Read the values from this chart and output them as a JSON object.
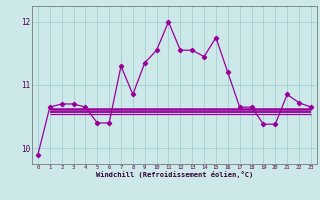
{
  "x": [
    0,
    1,
    2,
    3,
    4,
    5,
    6,
    7,
    8,
    9,
    10,
    11,
    12,
    13,
    14,
    15,
    16,
    17,
    18,
    19,
    20,
    21,
    22,
    23
  ],
  "y_main": [
    9.9,
    10.65,
    10.7,
    10.7,
    10.65,
    10.4,
    10.4,
    11.3,
    10.85,
    11.35,
    11.55,
    12.0,
    11.55,
    11.55,
    11.45,
    11.75,
    11.2,
    10.65,
    10.65,
    10.38,
    10.38,
    10.85,
    10.72,
    10.65
  ],
  "y_flat1": 10.62,
  "y_flat2": 10.58,
  "y_flat3": 10.54,
  "x_flat_start": 1,
  "x_flat_end": 23,
  "line_color": "#990099",
  "bg_color": "#cce8e8",
  "grid_color": "#99cccc",
  "ylim": [
    9.75,
    12.25
  ],
  "xlim": [
    -0.5,
    23.5
  ],
  "yticks": [
    10,
    11,
    12
  ],
  "xticks": [
    0,
    1,
    2,
    3,
    4,
    5,
    6,
    7,
    8,
    9,
    10,
    11,
    12,
    13,
    14,
    15,
    16,
    17,
    18,
    19,
    20,
    21,
    22,
    23
  ],
  "xlabel": "Windchill (Refroidissement éolien,°C)",
  "marker": "D",
  "markersize": 2.2,
  "linewidth": 0.9
}
